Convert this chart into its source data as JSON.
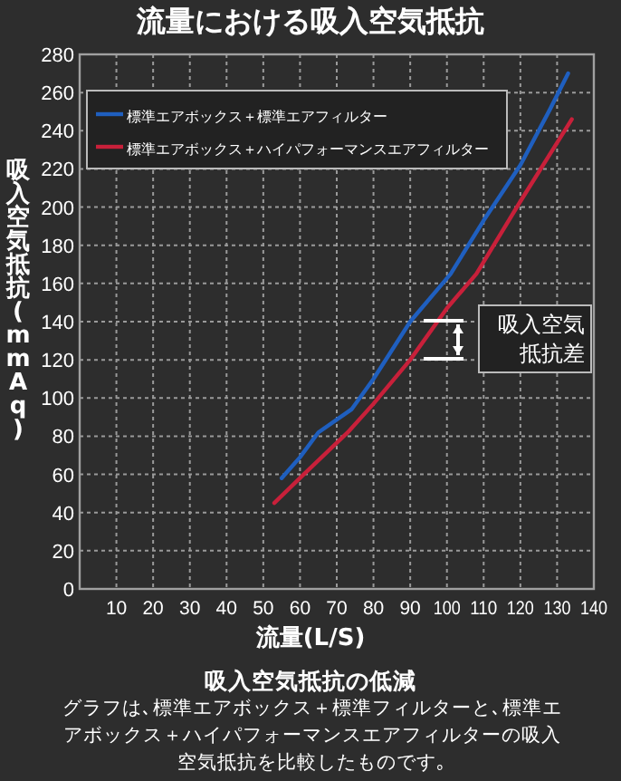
{
  "chart_data": {
    "type": "line",
    "title": "流量における吸入空気抵抗",
    "xlabel": "流量(L/S)",
    "ylabel": "吸入空気抵抗(mmAq)",
    "xlim": [
      0,
      140
    ],
    "xticks": [
      10,
      20,
      30,
      40,
      50,
      60,
      70,
      80,
      90,
      100,
      110,
      120,
      130,
      140
    ],
    "ylim": [
      0,
      280
    ],
    "yticks": [
      0,
      20,
      40,
      60,
      80,
      100,
      120,
      140,
      160,
      180,
      200,
      220,
      240,
      260,
      280
    ],
    "grid": true,
    "legend": "top left",
    "marker": "none",
    "line_style": "solid",
    "series": [
      {
        "name": "標準エアボックス＋標準エアフィルター",
        "color": "#1f5fbf",
        "x": [
          55,
          60,
          65,
          74,
          80,
          90,
          101,
          110,
          120,
          128,
          133
        ],
        "values": [
          58,
          69,
          82,
          94,
          110,
          140,
          165,
          193,
          222,
          251,
          270
        ]
      },
      {
        "name": "標準エアボックス＋ハイパフォーマンスエアフィルター",
        "color": "#c8203a",
        "x": [
          53,
          61,
          73,
          80,
          90,
          100,
          108,
          120,
          134
        ],
        "values": [
          45,
          60,
          82,
          97,
          120,
          147,
          165,
          203,
          246
        ]
      }
    ],
    "annotations": [
      "吸入空気抵抗差",
      "吸入空気抵抗の低減",
      "グラフは､標準エアボックス＋標準フィルターと､標準エアボックス＋ハイパフォーマンスエアフィルターの吸入空気抵抗を比較したものです｡"
    ]
  }
}
